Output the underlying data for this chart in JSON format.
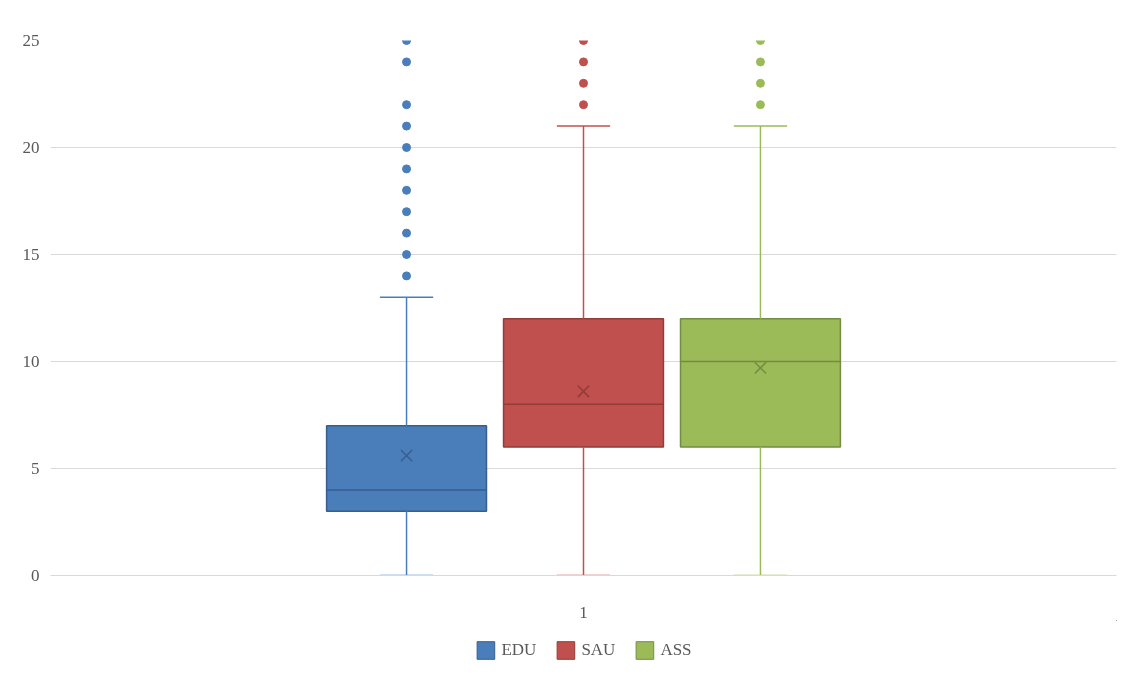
{
  "chart_data": {
    "type": "box",
    "categories": [
      "1"
    ],
    "series": [
      {
        "name": "EDU",
        "color": "#4a7ebb",
        "boxes": [
          {
            "low": 0,
            "q1": 3,
            "median": 4,
            "q3": 7,
            "high": 13,
            "mean": 5.6,
            "outliers": [
              14,
              15,
              16,
              17,
              18,
              19,
              20,
              21,
              22,
              24,
              25
            ]
          }
        ]
      },
      {
        "name": "SAU",
        "color": "#c0504d",
        "boxes": [
          {
            "low": 0,
            "q1": 6,
            "median": 8,
            "q3": 12,
            "high": 21,
            "mean": 8.6,
            "outliers": [
              22,
              23,
              24,
              25
            ]
          }
        ]
      },
      {
        "name": "ASS",
        "color": "#9bbb59",
        "boxes": [
          {
            "low": 0,
            "q1": 6,
            "median": 10,
            "q3": 12,
            "high": 21,
            "mean": 9.7,
            "outliers": [
              22,
              23,
              24,
              25
            ]
          }
        ]
      }
    ],
    "ylim": [
      0,
      25
    ],
    "yticks": [
      0,
      5,
      10,
      15,
      20,
      25
    ],
    "grid": "y",
    "legend": "bottom"
  }
}
